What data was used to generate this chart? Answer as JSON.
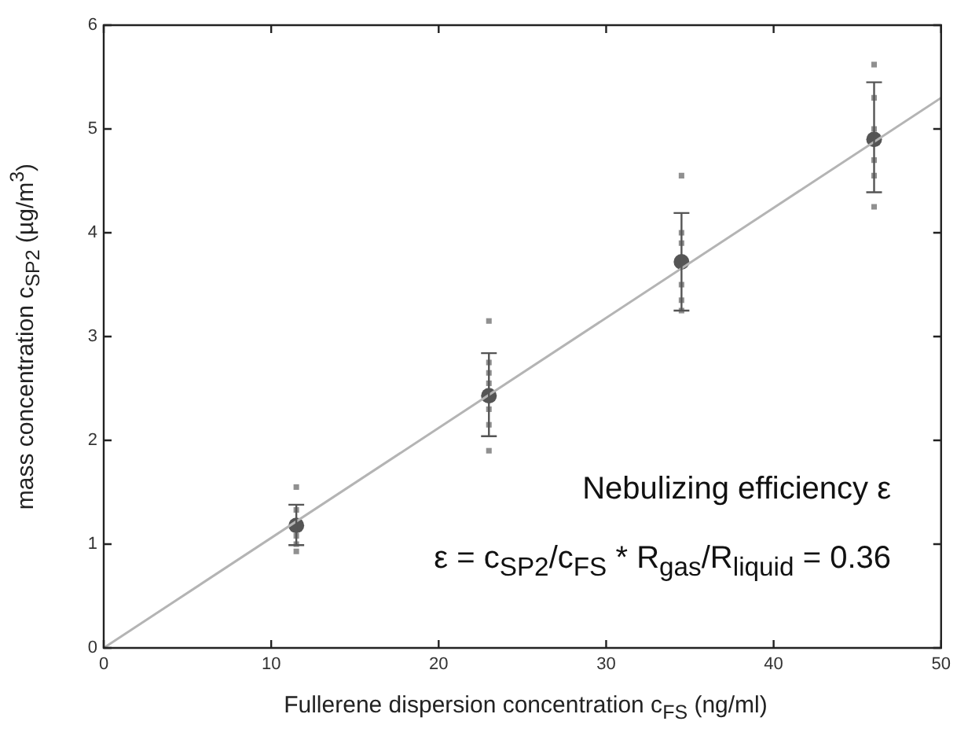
{
  "chart_data": {
    "type": "scatter",
    "xlabel": "Fullerene dispersion concentration c$_{FS}$ (ng/ml)",
    "ylabel": "mass concentration c$_{SP2}$ (µg/m$^{3}$)",
    "xlim": [
      0,
      50
    ],
    "xticks": [
      0,
      10,
      20,
      30,
      40,
      50
    ],
    "ylim": [
      0,
      6
    ],
    "yticks": [
      0,
      1,
      2,
      3,
      4,
      5,
      6
    ],
    "grid": false,
    "legend": false,
    "series": [
      {
        "type": "line",
        "color": "#b4b4b4",
        "marker": "none",
        "x": [
          0,
          50
        ],
        "values": [
          0,
          5.3
        ]
      },
      {
        "type": "scatter",
        "color": "#909090",
        "marker": "square",
        "x": [
          11.5,
          11.5,
          11.5,
          11.5,
          11.5,
          23,
          23,
          23,
          23,
          23,
          23,
          23,
          34.5,
          34.5,
          34.5,
          34.5,
          34.5,
          34.5,
          46,
          46,
          46,
          46,
          46,
          46
        ],
        "values": [
          1.55,
          1.33,
          1.08,
          1.0,
          0.93,
          3.15,
          2.75,
          2.65,
          2.55,
          2.3,
          2.15,
          1.9,
          4.55,
          4.0,
          3.9,
          3.5,
          3.35,
          3.25,
          5.62,
          5.3,
          5.0,
          4.7,
          4.55,
          4.25
        ]
      },
      {
        "type": "scatter",
        "color": "#555555",
        "marker": "circle",
        "x": [
          11.5,
          23,
          34.5,
          46
        ],
        "values": [
          1.18,
          2.43,
          3.72,
          4.9
        ],
        "errors": [
          [
            0.99,
            1.38
          ],
          [
            2.04,
            2.84
          ],
          [
            3.25,
            4.19
          ],
          [
            4.39,
            5.45
          ]
        ]
      }
    ],
    "annotations": [
      "Nebulizing efficiency ε",
      "ε = c$_{SP2}$/c$_{FS}$ * R$_{gas}$/R$_{liquid}$ = 0.36"
    ]
  }
}
